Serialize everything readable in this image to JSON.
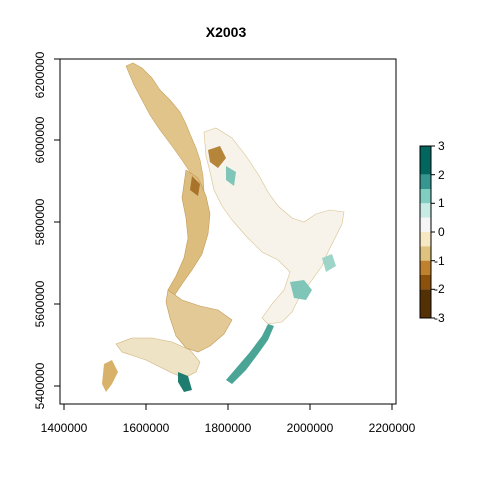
{
  "map": {
    "title": "X2003",
    "x_ticks": [
      "1400000",
      "1600000",
      "1800000",
      "2000000",
      "2200000"
    ],
    "y_ticks": [
      "5400000",
      "5600000",
      "5800000",
      "6000000",
      "6200000"
    ]
  },
  "legend": {
    "tick_labels": [
      "3",
      "2",
      "1",
      "0",
      "-1",
      "-2",
      "-3"
    ],
    "bins": [
      {
        "from": 2,
        "to": 3,
        "color": "#01665e"
      },
      {
        "from": 1.5,
        "to": 2,
        "color": "#35978f"
      },
      {
        "from": 1,
        "to": 1.5,
        "color": "#80cdc1"
      },
      {
        "from": 0.5,
        "to": 1,
        "color": "#c7eae5"
      },
      {
        "from": 0,
        "to": 0.5,
        "color": "#f5f5f5"
      },
      {
        "from": -0.5,
        "to": 0,
        "color": "#f6e8c3"
      },
      {
        "from": -1,
        "to": -0.5,
        "color": "#dfc27d"
      },
      {
        "from": -1.5,
        "to": -1,
        "color": "#bf812d"
      },
      {
        "from": -2,
        "to": -1.5,
        "color": "#8c510a"
      },
      {
        "from": -3,
        "to": -2,
        "color": "#543005"
      }
    ]
  },
  "colors": {
    "dry": "#d9b56a",
    "dry_dark": "#b88a3a",
    "neutral": "#f1e6c8",
    "wet": "#8fcfc2",
    "wet_dark": "#2a8d80"
  }
}
